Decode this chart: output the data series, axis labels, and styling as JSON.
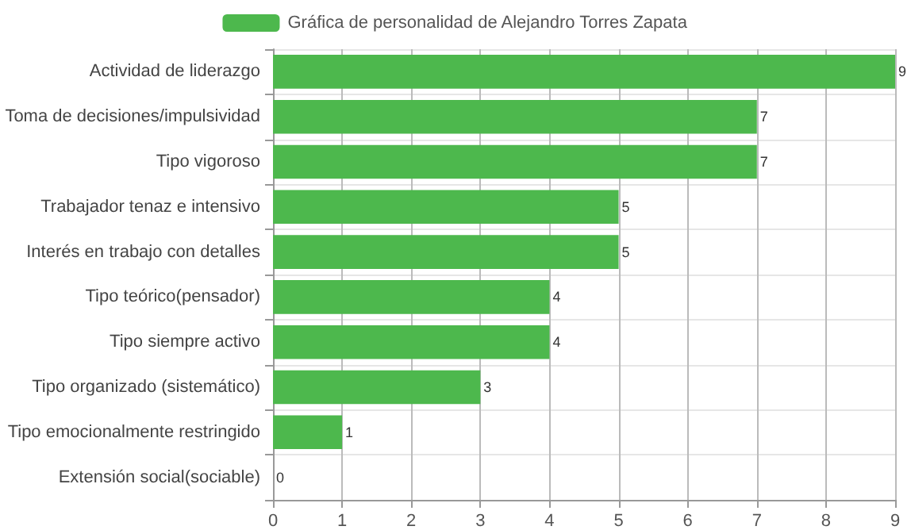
{
  "chart_data": {
    "type": "bar",
    "orientation": "horizontal",
    "categories": [
      "Actividad de liderazgo",
      "Toma de decisiones/impulsividad",
      "Tipo vigoroso",
      "Trabajador tenaz e intensivo",
      "Interés en trabajo con detalles",
      "Tipo teórico(pensador)",
      "Tipo siempre activo",
      "Tipo organizado (sistemático)",
      "Tipo emocionalmente restringido",
      "Extensión social(sociable)"
    ],
    "series": [
      {
        "name": "Gráfica de personalidad de Alejandro Torres Zapata",
        "color": "#4db84d",
        "values": [
          9,
          7,
          7,
          5,
          5,
          4,
          4,
          3,
          1,
          0
        ]
      }
    ],
    "xlim": [
      0,
      9
    ],
    "xticks": [
      0,
      1,
      2,
      3,
      4,
      5,
      6,
      7,
      8,
      9
    ],
    "grid": true,
    "legend": "top",
    "data_labels": true
  }
}
